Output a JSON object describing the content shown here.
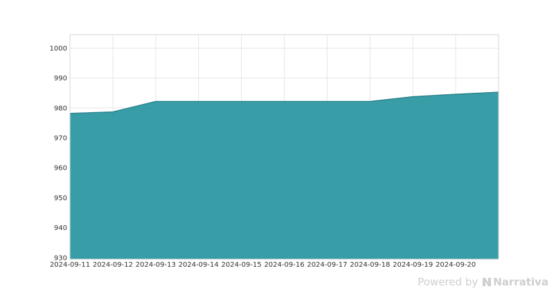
{
  "chart_data": {
    "type": "area",
    "x": [
      "2024-09-11",
      "2024-09-12",
      "2024-09-13",
      "2024-09-14",
      "2024-09-15",
      "2024-09-16",
      "2024-09-17",
      "2024-09-18",
      "2024-09-19",
      "2024-09-20",
      "2024-09-21"
    ],
    "values": [
      978.2,
      978.7,
      982.2,
      982.2,
      982.2,
      982.2,
      982.2,
      982.2,
      983.8,
      984.6,
      985.3
    ],
    "x_tick_labels": [
      "2024-09-11",
      "2024-09-12",
      "2024-09-13",
      "2024-09-14",
      "2024-09-15",
      "2024-09-16",
      "2024-09-17",
      "2024-09-18",
      "2024-09-19",
      "2024-09-20"
    ],
    "y_ticks": [
      930,
      940,
      950,
      960,
      970,
      980,
      990,
      1000
    ],
    "ylim": [
      929.5,
      1004.5
    ],
    "xlim": [
      "2024-09-11",
      "2024-09-21"
    ],
    "grid": true,
    "fill_color": "#2e98a3",
    "line_color": "#217a84",
    "title": "",
    "xlabel": "",
    "ylabel": ""
  },
  "watermark": {
    "prefix": "Powered by",
    "brand": "Narrativa"
  }
}
